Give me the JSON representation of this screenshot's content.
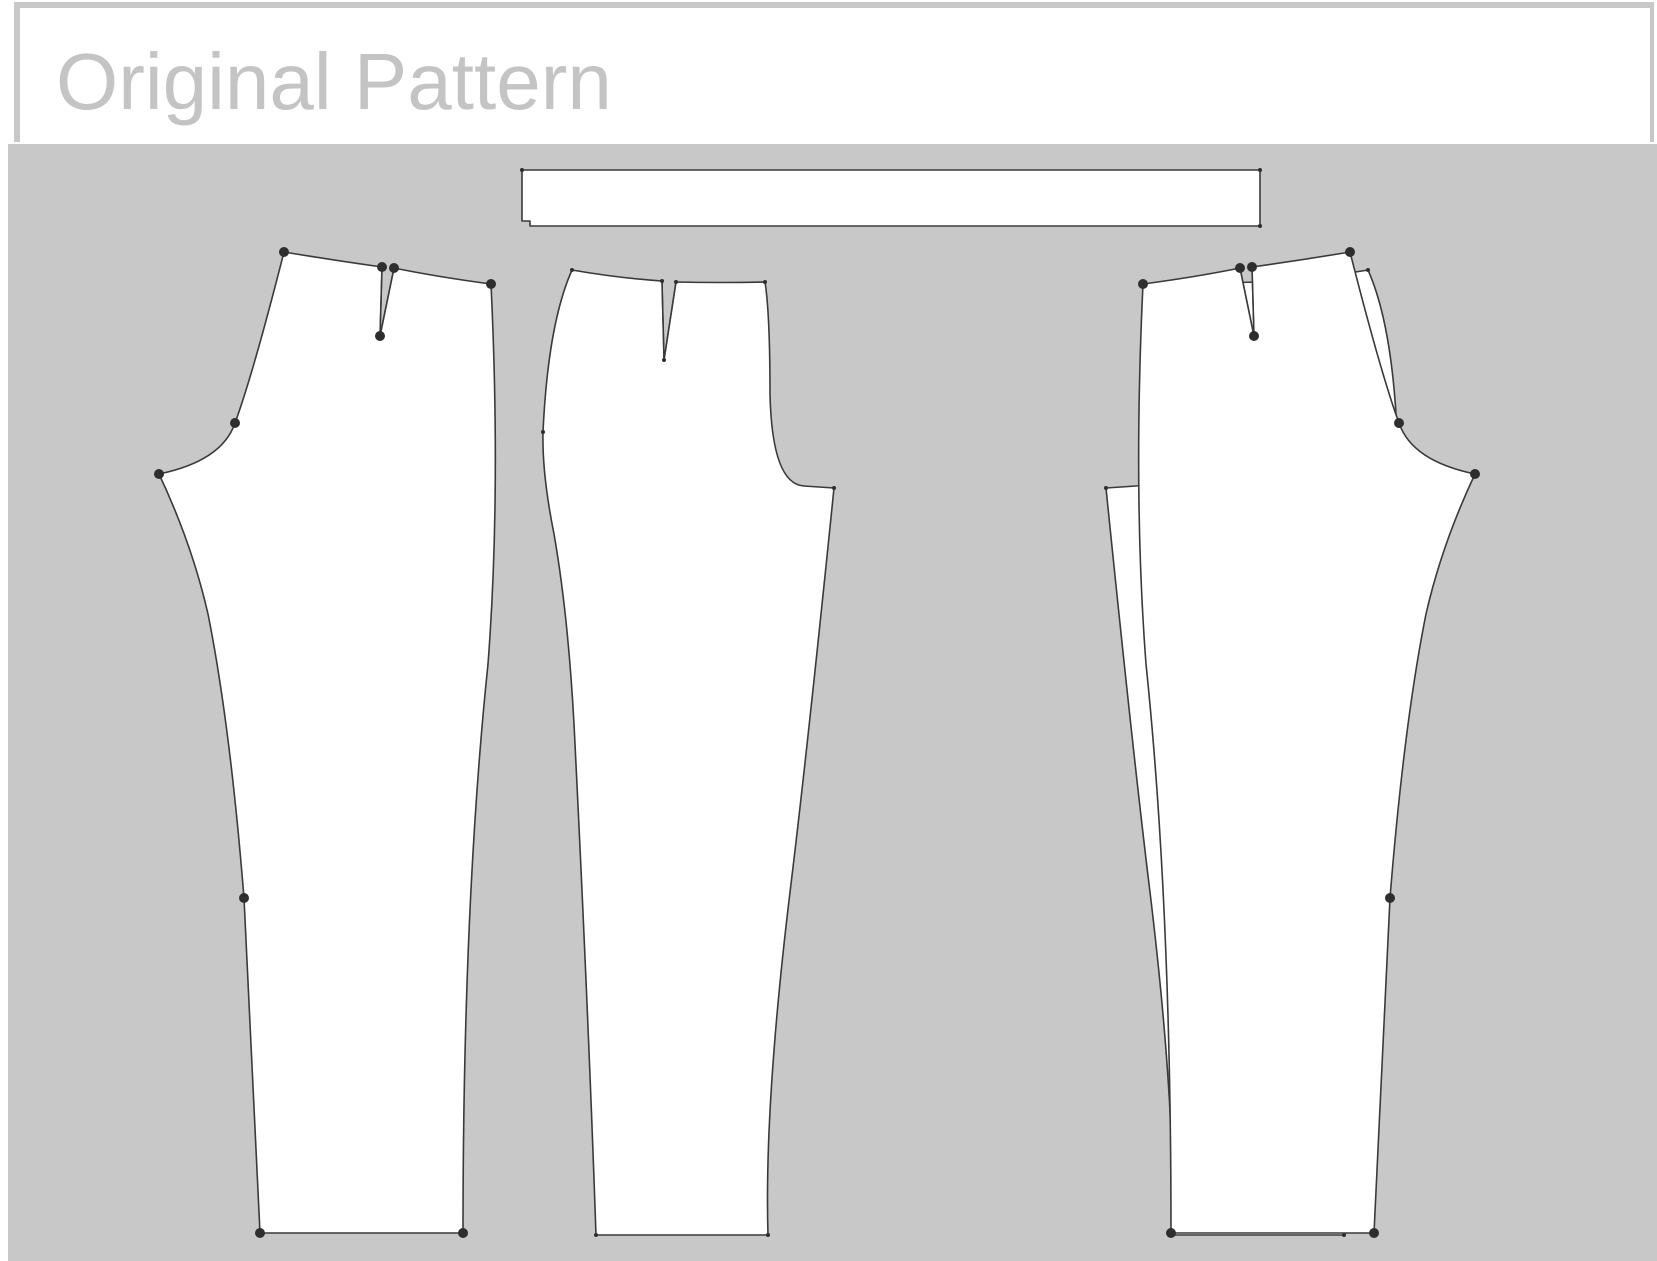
{
  "header": {
    "title": "Original Pattern"
  },
  "pattern": {
    "pieces": [
      {
        "name": "waistband",
        "icon": "rectangle-shape"
      },
      {
        "name": "back-piece-left",
        "icon": "trouser-back-shape"
      },
      {
        "name": "front-piece-left",
        "icon": "trouser-front-shape"
      },
      {
        "name": "front-piece-right",
        "icon": "trouser-front-shape"
      },
      {
        "name": "back-piece-right",
        "icon": "trouser-back-shape"
      }
    ]
  },
  "colors": {
    "canvas_background": "#c8c8c8",
    "piece_fill": "#ffffff",
    "outline": "#3a3a3a",
    "title_text": "#c4c4c4"
  }
}
